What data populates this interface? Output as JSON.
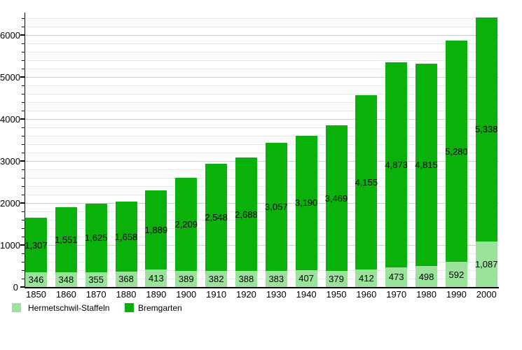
{
  "chart_data": {
    "type": "bar",
    "stacked": true,
    "title": "",
    "xlabel": "",
    "ylabel": "",
    "categories": [
      "1850",
      "1860",
      "1870",
      "1880",
      "1890",
      "1900",
      "1910",
      "1920",
      "1930",
      "1940",
      "1950",
      "1960",
      "1970",
      "1980",
      "1990",
      "2000"
    ],
    "series": [
      {
        "name": "Hermetschwil-Staffeln",
        "color": "#9be39b",
        "values": [
          346,
          348,
          355,
          368,
          413,
          389,
          382,
          388,
          383,
          407,
          379,
          412,
          473,
          498,
          592,
          1087
        ]
      },
      {
        "name": "Bremgarten",
        "color": "#0bb10b",
        "values": [
          1307,
          1551,
          1625,
          1658,
          1889,
          2209,
          2548,
          2688,
          3057,
          3190,
          3469,
          4155,
          4873,
          4815,
          5280,
          5338
        ]
      }
    ],
    "ylim": [
      0,
      6400
    ],
    "y_ticks_major": [
      0,
      1000,
      2000,
      3000,
      4000,
      5000,
      6000
    ],
    "y_minor_step": 200,
    "grid": true,
    "bar_value_labels": true,
    "legend_position": "bottom-left",
    "colors": {
      "axis": "#000000",
      "grid_major": "#cccccc",
      "grid_minor": "#e9e9e9",
      "label_text": "#000000",
      "background": "#ffffff"
    }
  }
}
